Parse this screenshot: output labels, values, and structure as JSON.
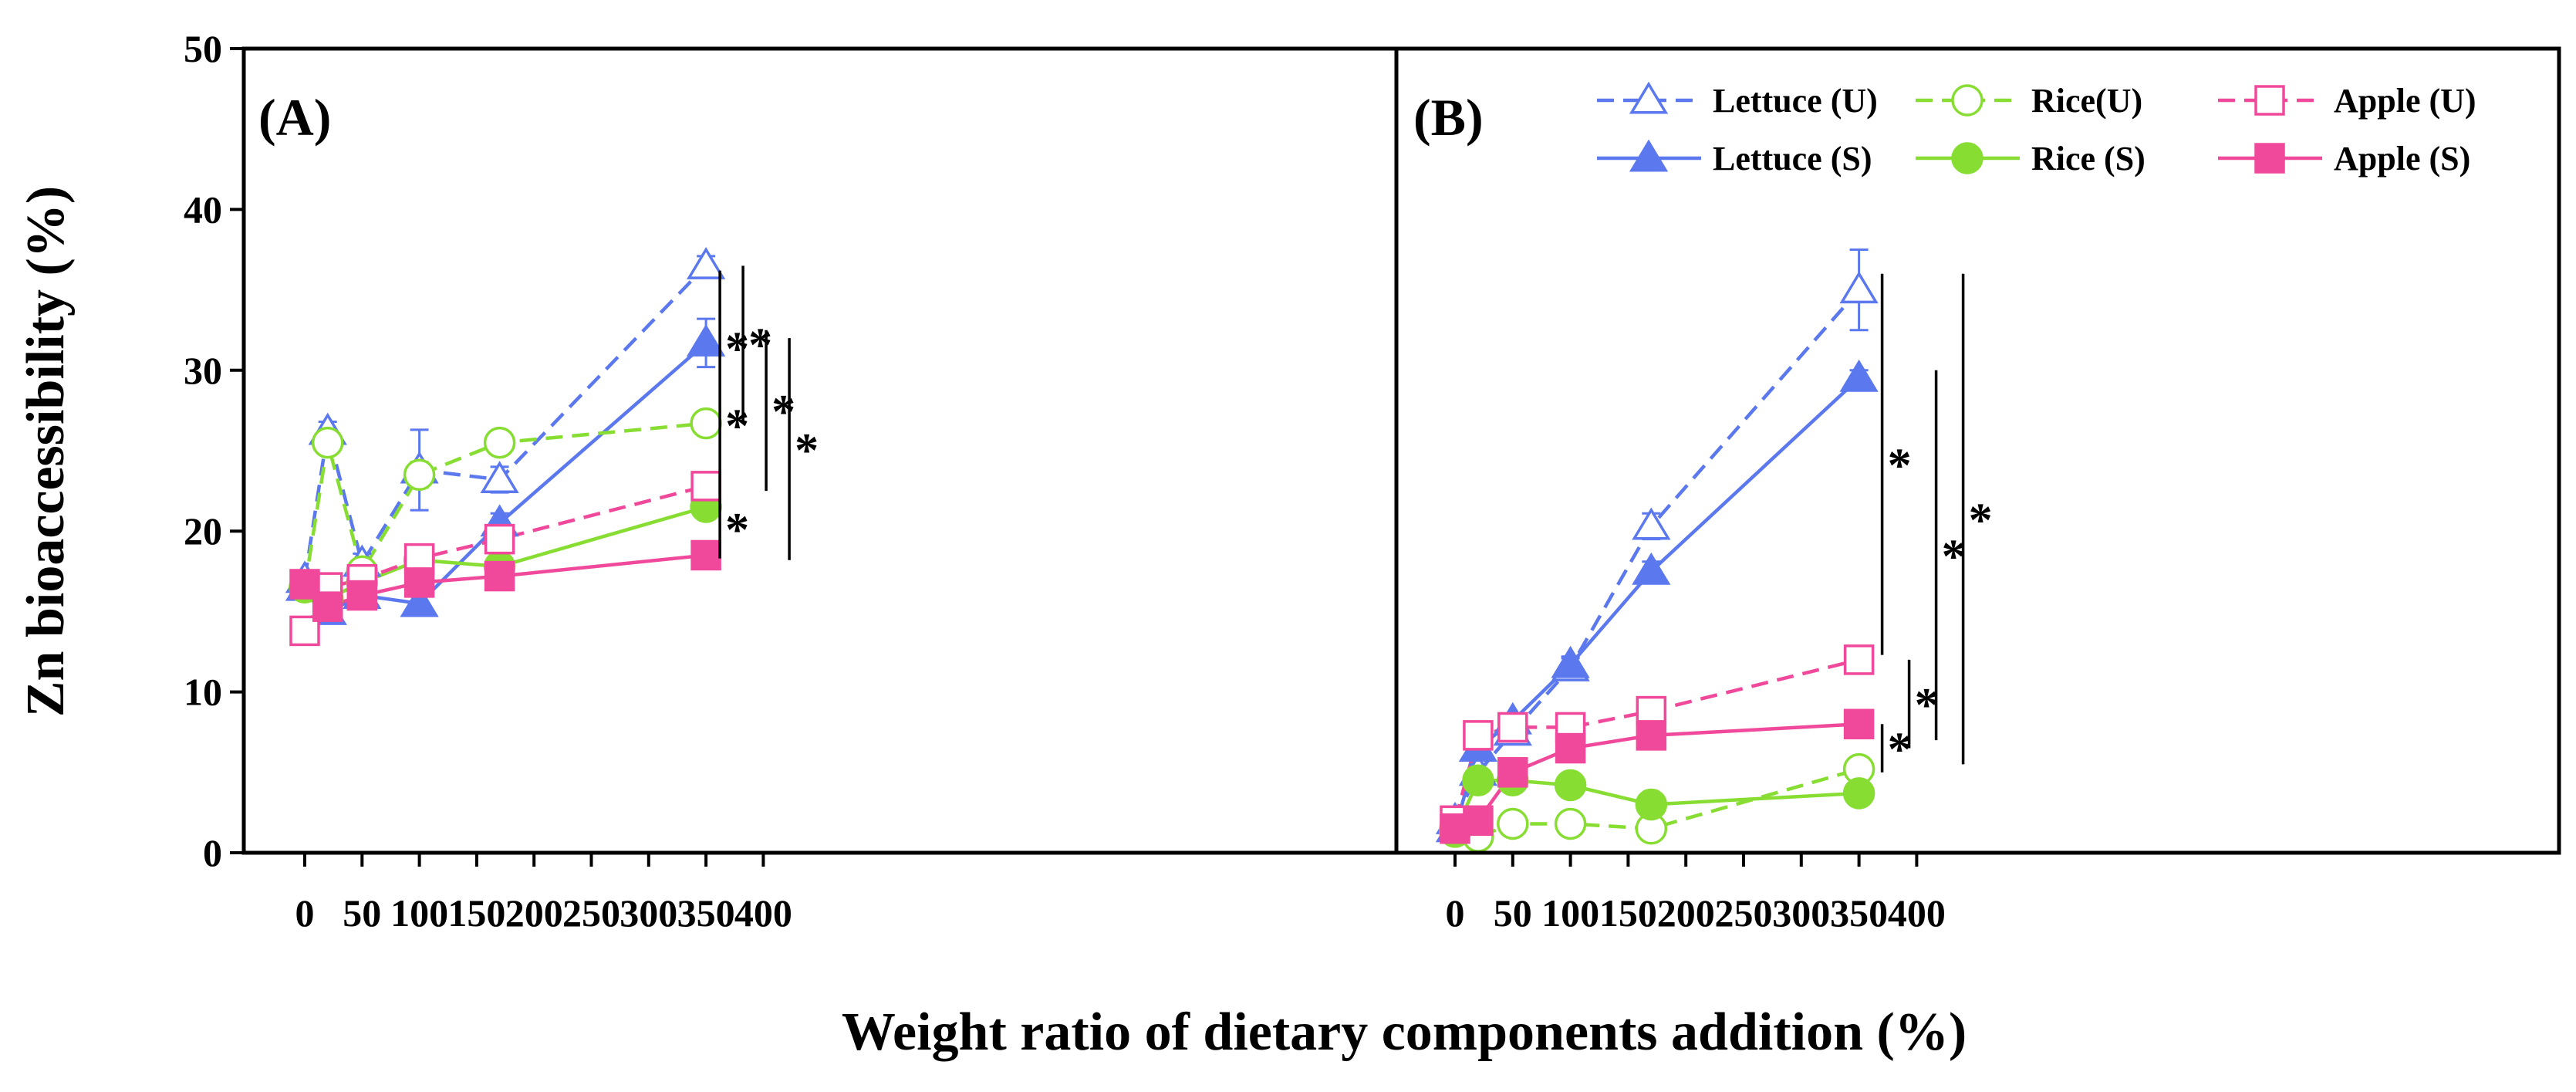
{
  "chart_data": {
    "type": "line",
    "y_label": "Zn bioaccessibility (%)",
    "x_label": "Weight ratio of dietary components addition (%)",
    "y_range": [
      0,
      50
    ],
    "y_ticks": [
      "0",
      "10",
      "20",
      "30",
      "40",
      "50"
    ],
    "x_ticks": [
      "0",
      "50",
      "100",
      "150",
      "200",
      "250",
      "300",
      "350",
      "400"
    ],
    "x_tick_values": [
      0,
      50,
      100,
      150,
      200,
      250,
      300,
      350,
      400
    ],
    "x_positions": [
      0,
      20,
      50,
      100,
      170,
      350
    ],
    "colors": {
      "lettuce": "#5b78ee",
      "rice": "#88dd33",
      "apple": "#f0489a"
    },
    "legend": [
      {
        "label": "Lettuce (U)",
        "food": "lettuce",
        "dashed": true,
        "filled": false,
        "marker": "triangle"
      },
      {
        "label": "Rice(U)",
        "food": "rice",
        "dashed": true,
        "filled": false,
        "marker": "circle"
      },
      {
        "label": "Apple (U)",
        "food": "apple",
        "dashed": true,
        "filled": false,
        "marker": "square"
      },
      {
        "label": "Lettuce (S)",
        "food": "lettuce",
        "dashed": false,
        "filled": true,
        "marker": "triangle"
      },
      {
        "label": "Rice (S)",
        "food": "rice",
        "dashed": false,
        "filled": true,
        "marker": "circle"
      },
      {
        "label": "Apple (S)",
        "food": "apple",
        "dashed": false,
        "filled": true,
        "marker": "square"
      }
    ],
    "panels": [
      {
        "label": "(A)",
        "series": [
          {
            "name": "Lettuce (U)",
            "food": "lettuce",
            "dashed": true,
            "filled": false,
            "marker": "triangle",
            "values": [
              17.0,
              26.2,
              18.0,
              23.8,
              23.2,
              36.5
            ],
            "errors": [
              0.5,
              0.6,
              0.6,
              2.5,
              0.8,
              0.6
            ]
          },
          {
            "name": "Lettuce (S)",
            "food": "lettuce",
            "dashed": false,
            "filled": true,
            "marker": "triangle",
            "values": [
              16.5,
              15.0,
              16.0,
              15.5,
              20.5,
              31.7
            ],
            "errors": [
              0.5,
              0.5,
              0.5,
              0.5,
              0.6,
              1.5
            ]
          },
          {
            "name": "Rice(U)",
            "food": "rice",
            "dashed": true,
            "filled": false,
            "marker": "circle",
            "values": [
              16.5,
              25.5,
              17.5,
              23.5,
              25.5,
              26.7
            ],
            "errors": [
              0.5,
              0.6,
              0.5,
              0.8,
              0.5,
              0.5
            ]
          },
          {
            "name": "Rice (S)",
            "food": "rice",
            "dashed": false,
            "filled": true,
            "marker": "circle",
            "values": [
              16.5,
              15.8,
              16.8,
              18.2,
              17.8,
              21.5
            ],
            "errors": [
              0.4,
              0.4,
              0.4,
              0.5,
              0.4,
              0.6
            ]
          },
          {
            "name": "Apple (U)",
            "food": "apple",
            "dashed": true,
            "filled": false,
            "marker": "square",
            "values": [
              13.8,
              16.5,
              17.0,
              18.3,
              19.5,
              22.8
            ],
            "errors": [
              0.5,
              0.5,
              0.5,
              0.6,
              0.8,
              0.8
            ]
          },
          {
            "name": "Apple (S)",
            "food": "apple",
            "dashed": false,
            "filled": true,
            "marker": "square",
            "values": [
              16.7,
              15.3,
              16.0,
              16.8,
              17.2,
              18.5
            ],
            "errors": [
              0.4,
              0.4,
              0.4,
              0.5,
              0.4,
              0.4
            ]
          }
        ],
        "significance": [
          {
            "x_offset": 18,
            "from": 36.2,
            "to": 21.8,
            "marks": [
              "*",
              "*"
            ]
          },
          {
            "x_offset": 48,
            "from": 36.5,
            "to": 26.8,
            "marks": [
              "*"
            ]
          },
          {
            "x_offset": 78,
            "from": 32.5,
            "to": 22.5,
            "marks": [
              "*"
            ]
          },
          {
            "x_offset": 108,
            "from": 32.0,
            "to": 18.2,
            "marks": [
              "*"
            ]
          },
          {
            "x_offset": 18,
            "from": 22.0,
            "to": 18.3,
            "marks": [
              "*"
            ]
          }
        ]
      },
      {
        "label": "(B)",
        "series": [
          {
            "name": "Lettuce (U)",
            "food": "lettuce",
            "dashed": true,
            "filled": false,
            "marker": "triangle",
            "values": [
              2.0,
              5.0,
              7.5,
              11.5,
              20.3,
              35.0
            ],
            "errors": [
              0.4,
              0.5,
              0.5,
              0.6,
              0.8,
              2.5
            ]
          },
          {
            "name": "Lettuce (S)",
            "food": "lettuce",
            "dashed": false,
            "filled": true,
            "marker": "triangle",
            "values": [
              1.5,
              6.5,
              8.2,
              11.7,
              17.5,
              29.5
            ],
            "errors": [
              0.3,
              0.4,
              0.4,
              0.5,
              0.6,
              0.5
            ]
          },
          {
            "name": "Rice(U)",
            "food": "rice",
            "dashed": true,
            "filled": false,
            "marker": "circle",
            "values": [
              1.5,
              1.0,
              1.8,
              1.8,
              1.5,
              5.2
            ],
            "errors": [
              0.3,
              0.3,
              0.3,
              0.3,
              0.3,
              0.4
            ]
          },
          {
            "name": "Rice (S)",
            "food": "rice",
            "dashed": false,
            "filled": true,
            "marker": "circle",
            "values": [
              1.3,
              4.5,
              4.5,
              4.2,
              3.0,
              3.7
            ],
            "errors": [
              0.3,
              0.4,
              0.4,
              0.4,
              0.3,
              0.3
            ]
          },
          {
            "name": "Apple (U)",
            "food": "apple",
            "dashed": true,
            "filled": false,
            "marker": "square",
            "values": [
              2.0,
              7.3,
              7.8,
              7.8,
              8.8,
              12.0
            ],
            "errors": [
              0.3,
              0.4,
              0.4,
              0.4,
              0.5,
              0.5
            ]
          },
          {
            "name": "Apple (S)",
            "food": "apple",
            "dashed": false,
            "filled": true,
            "marker": "square",
            "values": [
              1.5,
              2.0,
              5.0,
              6.5,
              7.3,
              8.0
            ],
            "errors": [
              0.3,
              0.3,
              0.3,
              0.3,
              0.4,
              0.4
            ]
          }
        ],
        "significance": [
          {
            "x_offset": 30,
            "from": 36.0,
            "to": 12.3,
            "marks": [
              "*"
            ]
          },
          {
            "x_offset": 30,
            "from": 8.0,
            "to": 5.0,
            "marks": [
              "*"
            ]
          },
          {
            "x_offset": 65,
            "from": 12.0,
            "to": 6.5,
            "marks": [
              "*"
            ]
          },
          {
            "x_offset": 100,
            "from": 30.0,
            "to": 7.0,
            "marks": [
              "*"
            ]
          },
          {
            "x_offset": 135,
            "from": 36.0,
            "to": 5.5,
            "marks": [
              "*"
            ]
          }
        ]
      }
    ]
  }
}
